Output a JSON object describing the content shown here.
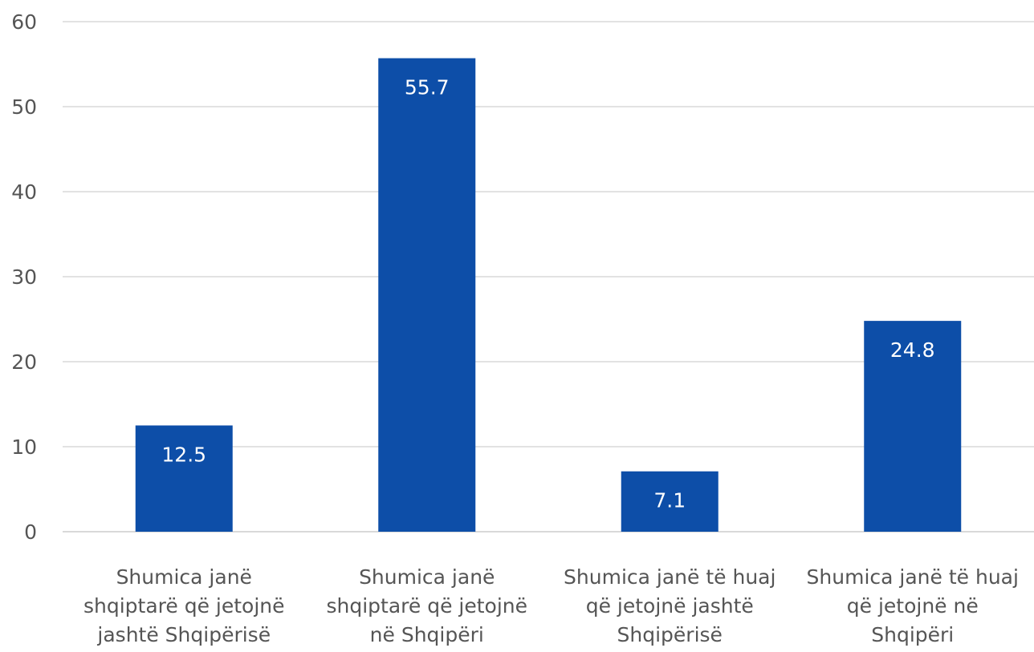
{
  "chart_data": {
    "type": "bar",
    "categories": [
      "Shumica janë shqiptarë që jetojnë jashtë Shqipërisë",
      "Shumica janë shqiptarë që jetojnë në Shqipëri",
      "Shumica janë të huaj që jetojnë jashtë Shqipërisë",
      "Shumica janë të huaj që jetojnë në Shqipëri"
    ],
    "category_lines": [
      [
        "Shumica janë",
        "shqiptarë që jetojnë",
        "jashtë Shqipërisë"
      ],
      [
        "Shumica janë",
        "shqiptarë që jetojnë",
        "në Shqipëri"
      ],
      [
        "Shumica janë të huaj",
        "që jetojnë jashtë",
        "Shqipërisë"
      ],
      [
        "Shumica janë të huaj",
        "që jetojnë në",
        "Shqipëri"
      ]
    ],
    "values": [
      12.5,
      55.7,
      7.1,
      24.8
    ],
    "data_labels": [
      "12.5",
      "55.7",
      "7.1",
      "24.8"
    ],
    "yticks": [
      "0",
      "10",
      "20",
      "30",
      "40",
      "50",
      "60"
    ],
    "ylim": [
      0,
      60
    ],
    "title": "",
    "xlabel": "",
    "ylabel": "",
    "grid": true,
    "legend": "none",
    "bar_color": "#0D4EA8",
    "grid_color": "#D9D9D9"
  }
}
